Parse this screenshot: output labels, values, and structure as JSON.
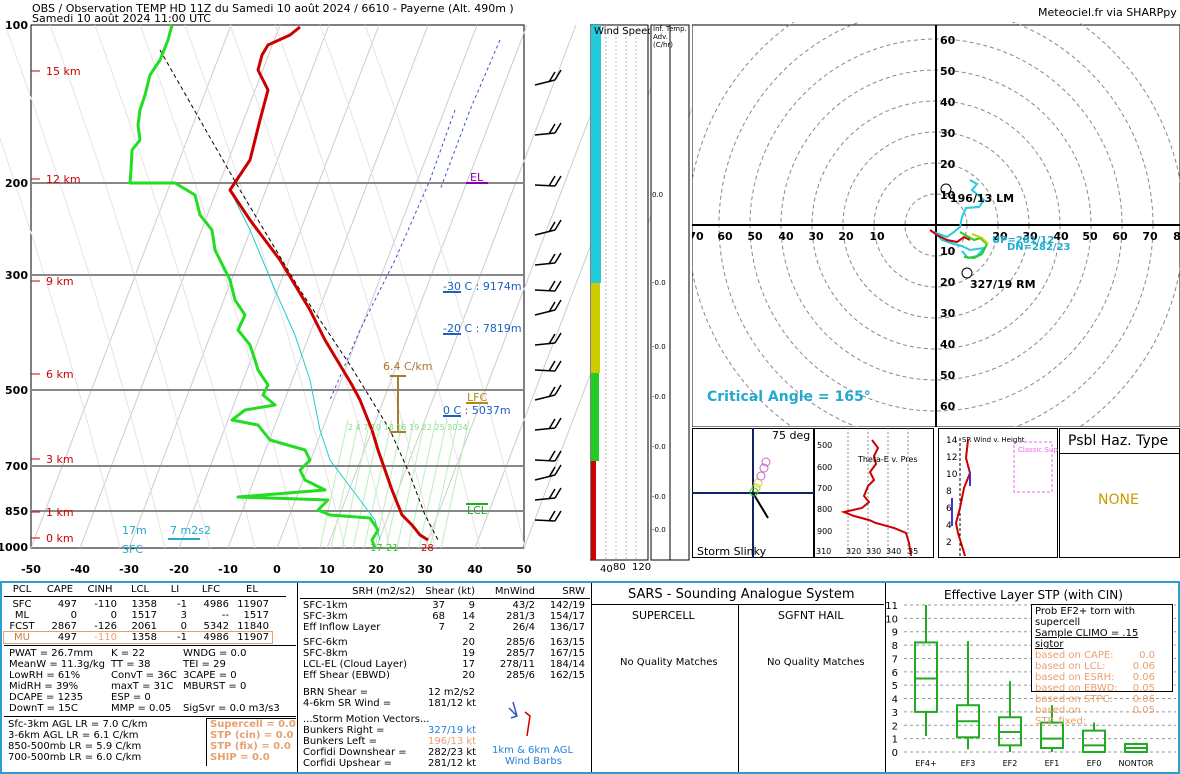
{
  "header": {
    "title": "OBS / Observation TEMP HD 11Z du Samedi 10 août 2024 / 6610 - Payerne (Alt. 490m )",
    "subtitle": "Samedi 10 août 2024 11:00 UTC",
    "credit": "Meteociel.fr via SHARPpy"
  },
  "skewt": {
    "pressure_labels": [
      "100",
      "200",
      "300",
      "500",
      "700",
      "850",
      "1000"
    ],
    "height_labels": [
      "15 km",
      "12 km",
      "9 km",
      "6 km",
      "3 km",
      "1 km",
      "0 km"
    ],
    "temp_ticks": [
      "-50",
      "-40",
      "-30",
      "-20",
      "-10",
      "0",
      "10",
      "20",
      "30",
      "40",
      "50"
    ],
    "el_label": "EL",
    "lfc_label": "LFC",
    "lcl_label": "LCL",
    "iso30": "-30 C : 9174m",
    "iso20": "-20 C : 7819m",
    "iso0": "0 C : 5037m",
    "lapse": "6.4 C/km",
    "srh_label": "17m",
    "srh_val": "7 m2s2",
    "sfc_label": "SFC",
    "sfc_t": "28",
    "sfc_td": "17",
    "sfc_td2": "21",
    "mix_labels": "2  4  7  10  13  16  19  22  25 3034",
    "colors": {
      "temp": "#cc0000",
      "dew": "#22cc22",
      "wetbulb": "#22cccc",
      "grid": "#888888"
    }
  },
  "wind_col": {
    "title": "Wind Speed (knots)",
    "ticks": [
      "40",
      "80",
      "120"
    ],
    "adv_title": "Inf. Temp. Adv. (C/hr)",
    "adv_vals": [
      "0.0",
      "-0.0",
      "-0.0",
      "-0.0",
      "-0.0",
      "-0.0",
      "-0.0",
      "-0.0"
    ]
  },
  "hodo": {
    "rings": [
      "60",
      "50",
      "40",
      "30",
      "20",
      "10",
      "10",
      "20",
      "30",
      "40",
      "50",
      "60"
    ],
    "axis": [
      "70",
      "60",
      "50",
      "40",
      "30",
      "20",
      "10",
      "20",
      "30",
      "40",
      "50",
      "60",
      "70",
      "8"
    ],
    "lm": "196/13 LM",
    "rm": "327/19 RM",
    "dn": "DN=282/23",
    "up": "UP=281/12",
    "critical": "Critical Angle = 165°"
  },
  "small": {
    "slinky_deg": "75 deg",
    "slinky_label": "Storm Slinky",
    "theta_label": "Theta-E v. Pres",
    "theta_pres": [
      "500",
      "600",
      "700",
      "800",
      "900"
    ],
    "theta_x": [
      "310",
      "320",
      "330",
      "340",
      "35"
    ],
    "srw_label": "SR Wind v. Height",
    "srw_classic": "Classic Supercell",
    "srw_y": [
      "14",
      "12",
      "10",
      "8",
      "6",
      "4",
      "2"
    ],
    "haz_title": "Psbl Haz. Type",
    "haz_val": "NONE"
  },
  "parcels": {
    "headers": [
      "PCL",
      "CAPE",
      "CINH",
      "LCL",
      "LI",
      "LFC",
      "EL"
    ],
    "rows": [
      [
        "SFC",
        "497",
        "-110",
        "1358",
        "-1",
        "4986",
        "11907"
      ],
      [
        "ML",
        "0",
        "0",
        "1517",
        "3",
        "--",
        "1517"
      ],
      [
        "FCST",
        "2867",
        "-126",
        "2061",
        "0",
        "5342",
        "11840"
      ],
      [
        "MU",
        "497",
        "-110",
        "1358",
        "-1",
        "4986",
        "11907"
      ]
    ],
    "indices": [
      [
        "PWAT = 26.7mm",
        "K = 22",
        "WNDG = 0.0"
      ],
      [
        "MeanW = 11.3g/kg",
        "TT = 38",
        "TEI = 29"
      ],
      [
        "LowRH = 61%",
        "ConvT = 36C",
        "3CAPE = 0"
      ],
      [
        "MidRH = 39%",
        "maxT = 31C",
        "MBURST = 0"
      ],
      [
        "DCAPE = 1235",
        "ESP = 0",
        ""
      ],
      [
        "DownT = 15C",
        "MMP = 0.05",
        "SigSvr = 0.0 m3/s3"
      ]
    ],
    "lapse": [
      "Sfc-3km AGL LR = 7.0 C/km",
      "3-6km AGL LR = 6.1 C/km",
      "850-500mb LR = 5.9 C/km",
      "700-500mb LR = 6.0 C/km"
    ],
    "severe": [
      "Supercell = 0.0",
      "STP (cin) = 0.0",
      "STP (fix) = 0.0",
      "SHIP = 0.0"
    ]
  },
  "kinematics": {
    "headers": [
      "SRH (m2/s2)",
      "Shear (kt)",
      "MnWind",
      "SRW"
    ],
    "rows1": [
      [
        "SFC-1km",
        "37",
        "9",
        "43/2",
        "142/19"
      ],
      [
        "SFC-3km",
        "68",
        "14",
        "281/3",
        "154/17"
      ],
      [
        "Eff Inflow Layer",
        "7",
        "2",
        "26/4",
        "136/17"
      ]
    ],
    "rows2": [
      [
        "SFC-6km",
        "",
        "20",
        "285/6",
        "163/15"
      ],
      [
        "SFC-8km",
        "",
        "19",
        "285/7",
        "167/15"
      ],
      [
        "LCL-EL (Cloud Layer)",
        "",
        "17",
        "278/11",
        "184/14"
      ],
      [
        "Eff Shear (EBWD)",
        "",
        "20",
        "285/6",
        "162/15"
      ]
    ],
    "brn": [
      "BRN Shear =",
      "12 m2/s2"
    ],
    "sr46": [
      "4-6km SR Wind =",
      "181/12 kt"
    ],
    "motion_title": "...Storm Motion Vectors...",
    "motion": [
      [
        "Bunkers Right =",
        "327/19 kt"
      ],
      [
        "Bunkers Left =",
        "196/13 kt"
      ],
      [
        "Corfidi Downshear =",
        "282/23 kt"
      ],
      [
        "Corfidi Upshear =",
        "281/12 kt"
      ]
    ],
    "barb_label1": "1km & 6km AGL",
    "barb_label2": "Wind Barbs"
  },
  "sars": {
    "title": "SARS - Sounding Analogue System",
    "col1": "SUPERCELL",
    "col2": "SGFNT HAIL",
    "msg": "No Quality Matches"
  },
  "stp": {
    "title": "Effective Layer STP (with CIN)",
    "yticks": [
      "11",
      "10",
      "9",
      "8",
      "7",
      "6",
      "5",
      "4",
      "3",
      "2",
      "1",
      "0"
    ],
    "categories": [
      "EF4+",
      "EF3",
      "EF2",
      "EF1",
      "EF0",
      "NONTOR"
    ],
    "legend_title": "Prob EF2+ torn with supercell",
    "legend_sub": "Sample CLIMO = .15 sigtor",
    "legend_rows": [
      [
        "based on CAPE:",
        "0.0"
      ],
      [
        "based on LCL:",
        "0.06"
      ],
      [
        "based on ESRH:",
        "0.06"
      ],
      [
        "based on EBWD:",
        "0.05"
      ],
      [
        "based on STPC:",
        "0.06"
      ],
      [
        "based on STP_fixed:",
        "0.05"
      ]
    ]
  },
  "chart_data": {
    "type": "box",
    "title": "Effective Layer STP (with CIN)",
    "categories": [
      "EF4+",
      "EF3",
      "EF2",
      "EF1",
      "EF0",
      "NONTOR"
    ],
    "boxes": [
      {
        "min": 1.2,
        "q1": 3.0,
        "median": 5.5,
        "q3": 8.2,
        "max": 11.0
      },
      {
        "min": 0.2,
        "q1": 1.1,
        "median": 2.3,
        "q3": 3.5,
        "max": 8.3
      },
      {
        "min": 0.0,
        "q1": 0.5,
        "median": 1.5,
        "q3": 2.6,
        "max": 5.3
      },
      {
        "min": 0.0,
        "q1": 0.3,
        "median": 1.0,
        "q3": 2.2,
        "max": 3.5
      },
      {
        "min": 0.0,
        "q1": 0.0,
        "median": 0.5,
        "q3": 1.6,
        "max": 2.2
      },
      {
        "min": 0.0,
        "q1": 0.0,
        "median": 0.3,
        "q3": 0.6,
        "max": 0.7
      }
    ],
    "ylim": [
      0,
      11
    ]
  }
}
